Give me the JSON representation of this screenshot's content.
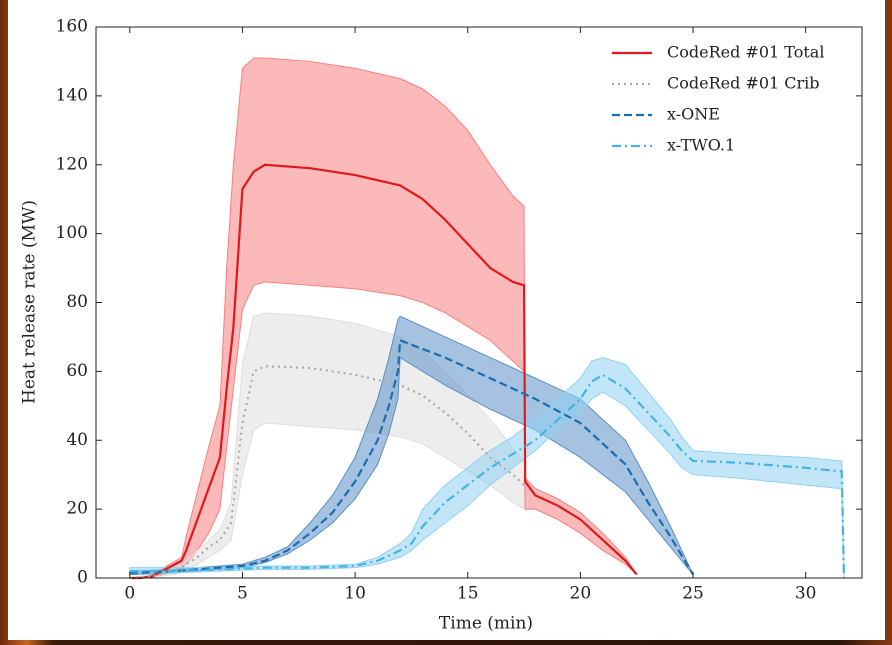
{
  "chart_data": {
    "type": "line",
    "xlabel": "Time (min)",
    "ylabel": "Heat release rate (MW)",
    "xlim": [
      -1.5,
      32.5
    ],
    "ylim": [
      0,
      160
    ],
    "xticks": [
      0,
      5,
      10,
      15,
      20,
      25,
      30
    ],
    "yticks": [
      0,
      20,
      40,
      60,
      80,
      100,
      120,
      140,
      160
    ],
    "legend": "upper right",
    "series": [
      {
        "name": "CodeRed #01 Total",
        "color": "#e0191c",
        "band_color": "#f77f80",
        "linestyle": "solid",
        "x": [
          0,
          0.5,
          1,
          2.3,
          2.5,
          3,
          3.5,
          4,
          4.3,
          4.6,
          5,
          5.5,
          6,
          8,
          10,
          12,
          13,
          14,
          15,
          16,
          17,
          17.5,
          17.55,
          18,
          19,
          20,
          21,
          22,
          22.5
        ],
        "values": [
          0,
          0,
          0.5,
          5,
          8,
          17,
          26,
          35,
          55,
          73,
          113,
          118,
          120,
          119,
          117,
          114,
          110,
          104,
          97,
          90,
          86,
          85,
          28,
          24,
          21,
          17,
          11,
          5,
          1
        ],
        "upper": [
          0,
          0,
          1,
          6,
          12,
          25,
          38,
          50,
          90,
          120,
          148,
          151,
          151,
          150,
          148,
          145,
          142,
          137,
          130,
          120,
          111,
          108,
          29,
          26,
          23,
          19,
          13,
          6,
          1
        ],
        "lower": [
          0,
          0,
          0,
          3,
          4,
          8,
          13,
          20,
          38,
          55,
          78,
          85,
          86,
          85,
          84,
          82,
          80,
          77,
          73,
          69,
          63,
          60,
          20,
          20,
          17,
          13,
          8,
          4,
          1
        ]
      },
      {
        "name": "CodeRed #01 Crib",
        "color": "#aaaaaa",
        "band_color": "#dedede",
        "linestyle": "dotted",
        "x": [
          0,
          1,
          2,
          2.5,
          3,
          3.5,
          4,
          4.5,
          5,
          5.5,
          6,
          8,
          10,
          12,
          13,
          14,
          15,
          16,
          17,
          17.5
        ],
        "values": [
          0,
          0.5,
          2,
          4,
          6,
          9,
          11,
          16,
          45,
          60,
          61.5,
          61,
          59,
          56,
          53,
          48,
          42,
          35,
          30,
          27
        ],
        "upper": [
          0,
          1,
          3,
          5,
          8,
          11,
          14,
          22,
          62,
          76,
          77,
          76,
          74,
          70,
          66,
          60,
          53,
          46,
          38,
          34
        ],
        "lower": [
          0,
          0.3,
          1,
          2,
          4,
          6,
          8,
          11,
          30,
          43,
          45,
          44,
          43,
          41,
          39,
          35,
          31,
          27,
          22,
          20
        ]
      },
      {
        "name": "x-ONE",
        "color": "#1a6db0",
        "band_color": "#5b8fc6",
        "linestyle": "dashed",
        "x": [
          0,
          2,
          4,
          5,
          6,
          7,
          8,
          9,
          10,
          11,
          11.5,
          11.9,
          12,
          14,
          16,
          18,
          20,
          22,
          23,
          24,
          25
        ],
        "values": [
          1.5,
          2,
          3,
          3.5,
          5,
          8,
          13,
          19,
          28,
          40,
          50,
          60,
          69,
          64,
          58,
          52,
          45,
          33,
          22,
          12,
          1
        ],
        "upper": [
          2,
          2.5,
          3.5,
          4,
          6,
          9,
          16,
          24,
          35,
          52,
          64,
          75,
          76,
          70,
          64,
          58,
          52,
          40,
          28,
          15,
          1
        ],
        "lower": [
          1,
          1.5,
          2.5,
          3,
          4.5,
          7,
          11,
          16,
          23,
          33,
          42,
          52,
          64,
          56,
          49,
          43,
          35,
          25,
          17,
          9,
          1
        ]
      },
      {
        "name": "x-TWO.1",
        "color": "#45b3e3",
        "band_color": "#8fd2f2",
        "linestyle": "dashdot",
        "x": [
          0,
          2,
          4,
          6,
          8,
          10,
          11,
          12,
          12.5,
          13,
          14,
          15,
          16,
          17,
          18,
          19,
          20,
          20.5,
          21,
          22,
          23,
          24,
          24.5,
          25,
          27,
          30,
          31.5,
          31.6,
          31.7
        ],
        "values": [
          2,
          2,
          2.5,
          3,
          3,
          3.5,
          5,
          8,
          10,
          15,
          22,
          27,
          32,
          36,
          40,
          46,
          52,
          57,
          59,
          55,
          48,
          41,
          37,
          34,
          33.5,
          32,
          31,
          31,
          0
        ],
        "upper": [
          3,
          3,
          3,
          3.5,
          3.5,
          4,
          6,
          10,
          13,
          20,
          27,
          32,
          37,
          41,
          46,
          52,
          58,
          63,
          64,
          62,
          54,
          46,
          41,
          37,
          36,
          35,
          34,
          34,
          0
        ],
        "lower": [
          1.5,
          1.5,
          2,
          2.5,
          2.5,
          3,
          4,
          6,
          8,
          11,
          16,
          21,
          27,
          32,
          37,
          43,
          48,
          52,
          54,
          50,
          43,
          36,
          32,
          30,
          29,
          27,
          26,
          26,
          0
        ]
      }
    ]
  }
}
